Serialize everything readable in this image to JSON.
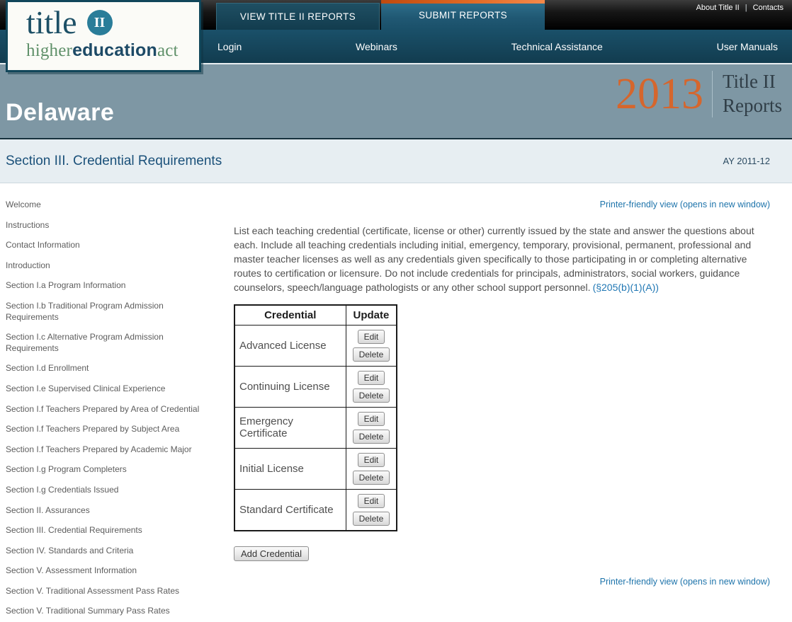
{
  "topbar": {
    "about_label": "About Title II",
    "separator": "|",
    "contacts_label": "Contacts"
  },
  "tabs": [
    {
      "label": "VIEW TITLE II REPORTS",
      "active": false
    },
    {
      "label": "SUBMIT REPORTS",
      "active": true
    }
  ],
  "navbar": {
    "items": [
      "Login",
      "Webinars",
      "Technical Assistance",
      "User Manuals"
    ]
  },
  "logo": {
    "word": "title",
    "badge": "II",
    "sub_part1": "higher",
    "sub_part2": "education",
    "sub_part3": "act"
  },
  "banner": {
    "state": "Delaware",
    "year": "2013",
    "report_title_line1": "Title II",
    "report_title_line2": "Reports"
  },
  "section": {
    "title": "Section III. Credential Requirements",
    "academic_year": "AY 2011-12"
  },
  "sidebar": {
    "items": [
      "Welcome",
      "Instructions",
      "Contact Information",
      "Introduction",
      "Section I.a Program Information",
      "Section I.b Traditional Program Admission Requirements",
      "Section I.c Alternative Program Admission Requirements",
      "Section I.d Enrollment",
      "Section I.e Supervised Clinical Experience",
      "Section I.f Teachers Prepared by Area of Credential",
      "Section I.f Teachers Prepared by Subject Area",
      "Section I.f Teachers Prepared by Academic Major",
      "Section I.g Program Completers",
      "Section I.g Credentials Issued",
      "Section II. Assurances",
      "Section III. Credential Requirements",
      "Section IV. Standards and Criteria",
      "Section V. Assessment Information",
      "Section V. Traditional Assessment Pass Rates",
      "Section V. Traditional Summary Pass Rates"
    ]
  },
  "main": {
    "printer_link": "Printer-friendly view (opens in new window)",
    "intro_text": "List each teaching credential (certificate, license or other) currently issued by the state and answer the questions about each. Include all teaching credentials including initial, emergency, temporary, provisional, permanent, professional and master teacher licenses as well as any credentials given specifically to those participating in or completing alternative routes to certification or licensure. Do not include credentials for principals, administrators, social workers, guidance counselors, speech/language pathologists or any other school support personnel.",
    "intro_citation": "(§205(b)(1)(A))",
    "table": {
      "headers": [
        "Credential",
        "Update"
      ],
      "edit_label": "Edit",
      "delete_label": "Delete",
      "rows": [
        {
          "credential": "Advanced License"
        },
        {
          "credential": "Continuing License"
        },
        {
          "credential": "Emergency Certificate"
        },
        {
          "credential": "Initial License"
        },
        {
          "credential": "Standard Certificate"
        }
      ]
    },
    "add_button_label": "Add Credential"
  },
  "colors": {
    "accent_orange": "#e06a24",
    "year_orange": "#d5662d",
    "brand_teal": "#1a5069",
    "banner_slate": "#7e97a4",
    "section_bg": "#e7eef2",
    "link_blue": "#1e74ab",
    "logo_green": "#5f9069",
    "logo_teal": "#1d5066"
  }
}
